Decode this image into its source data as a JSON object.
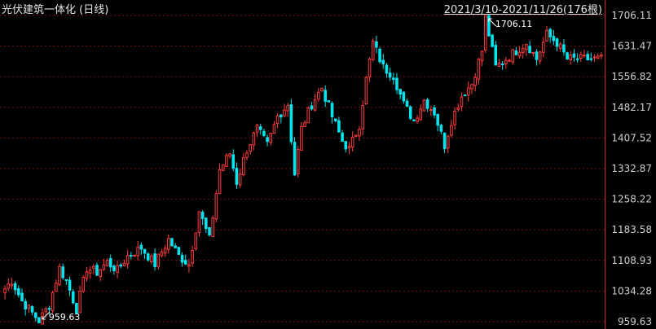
{
  "header": {
    "title": "光伏建筑一体化 (日线)",
    "range": "2021/3/10-2021/11/26(176根)"
  },
  "colors": {
    "up": "#ff3b3b",
    "down": "#00e5ee",
    "grid": "#7a1010",
    "axis": "#cc2222",
    "text": "#d0d0d0",
    "background": "#000000"
  },
  "chart_data": {
    "type": "candlestick",
    "title": "光伏建筑一体化 (日线)",
    "period": "2021/3/10-2021/11/26",
    "bar_count": 176,
    "y_ticks": [
      "1706.11",
      "1631.47",
      "1556.82",
      "1482.17",
      "1407.52",
      "1332.87",
      "1258.22",
      "1183.58",
      "1108.93",
      "1034.28",
      "959.63"
    ],
    "ylim": [
      959.63,
      1706.11
    ],
    "grid": true,
    "max_label": "1706.11",
    "min_label": "959.63",
    "max_value": 1706.11,
    "min_value": 959.63,
    "max_index": 141,
    "min_index": 10,
    "anchors": [
      [
        0,
        1040
      ],
      [
        2,
        1060
      ],
      [
        5,
        1010
      ],
      [
        10,
        962
      ],
      [
        13,
        1000
      ],
      [
        16,
        1090
      ],
      [
        18,
        1060
      ],
      [
        21,
        990
      ],
      [
        24,
        1090
      ],
      [
        27,
        1080
      ],
      [
        30,
        1105
      ],
      [
        33,
        1085
      ],
      [
        36,
        1120
      ],
      [
        40,
        1140
      ],
      [
        44,
        1100
      ],
      [
        48,
        1160
      ],
      [
        51,
        1120
      ],
      [
        54,
        1100
      ],
      [
        57,
        1230
      ],
      [
        60,
        1160
      ],
      [
        63,
        1330
      ],
      [
        66,
        1370
      ],
      [
        68,
        1300
      ],
      [
        71,
        1380
      ],
      [
        74,
        1430
      ],
      [
        77,
        1390
      ],
      [
        80,
        1460
      ],
      [
        83,
        1490
      ],
      [
        85,
        1320
      ],
      [
        87,
        1430
      ],
      [
        90,
        1490
      ],
      [
        93,
        1530
      ],
      [
        96,
        1460
      ],
      [
        99,
        1400
      ],
      [
        101,
        1380
      ],
      [
        104,
        1440
      ],
      [
        106,
        1550
      ],
      [
        108,
        1640
      ],
      [
        111,
        1580
      ],
      [
        114,
        1560
      ],
      [
        117,
        1490
      ],
      [
        120,
        1450
      ],
      [
        123,
        1500
      ],
      [
        126,
        1470
      ],
      [
        129,
        1390
      ],
      [
        131,
        1450
      ],
      [
        134,
        1510
      ],
      [
        137,
        1540
      ],
      [
        140,
        1620
      ],
      [
        141,
        1700
      ],
      [
        144,
        1580
      ],
      [
        147,
        1600
      ],
      [
        150,
        1620
      ],
      [
        153,
        1640
      ],
      [
        156,
        1600
      ],
      [
        159,
        1660
      ],
      [
        162,
        1640
      ],
      [
        165,
        1600
      ]
    ]
  }
}
